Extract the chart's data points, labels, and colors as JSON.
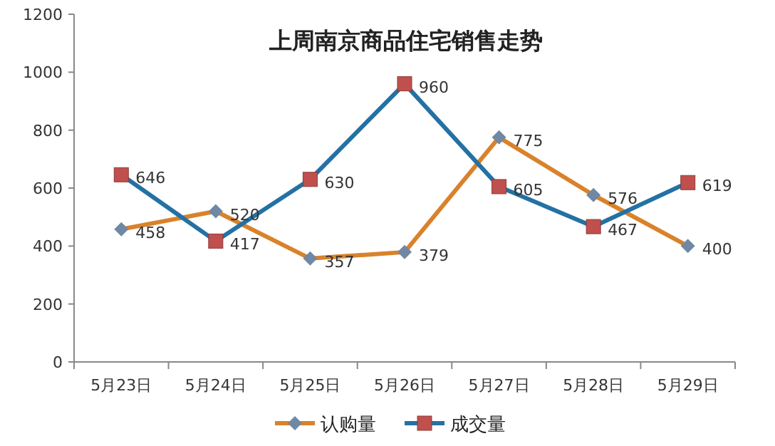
{
  "chart_data": {
    "type": "line",
    "title": "上周南京商品住宅销售走势",
    "categories": [
      "5月23日",
      "5月24日",
      "5月25日",
      "5月26日",
      "5月27日",
      "5月28日",
      "5月29日"
    ],
    "series": [
      {
        "name": "认购量",
        "color": "#d9822b",
        "marker": "diamond",
        "values": [
          458,
          520,
          357,
          379,
          775,
          576,
          400
        ]
      },
      {
        "name": "成交量",
        "color": "#2471a3",
        "marker": "square",
        "values": [
          646,
          417,
          630,
          960,
          605,
          467,
          619
        ]
      }
    ],
    "ylim": [
      0,
      1200
    ],
    "yticks": [
      0,
      200,
      400,
      600,
      800,
      1000,
      1200
    ],
    "grid": false,
    "legend": "bottom",
    "data_labels": true
  }
}
